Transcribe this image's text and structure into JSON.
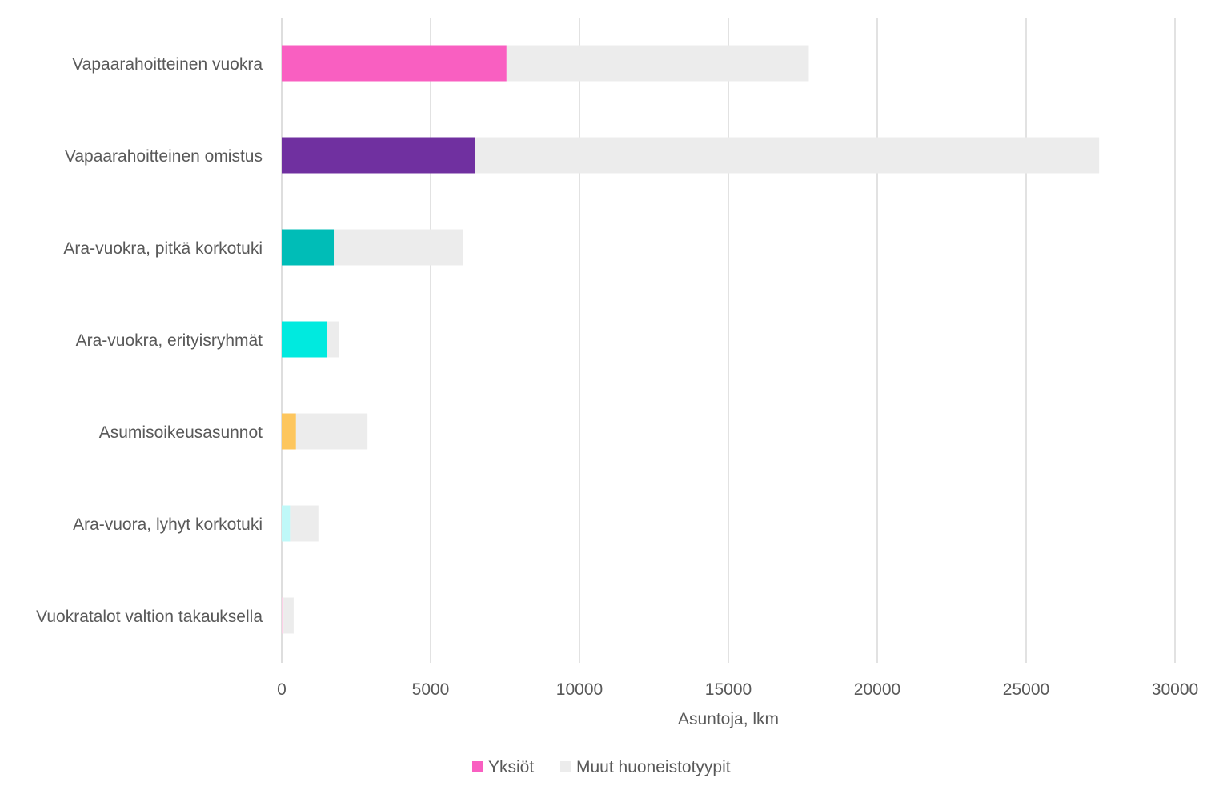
{
  "chart_data": {
    "type": "bar",
    "orientation": "horizontal",
    "stacked": true,
    "categories": [
      "Vapaarahoitteinen vuokra",
      "Vapaarahoitteinen omistus",
      "Ara-vuokra, pitkä korkotuki",
      "Ara-vuokra, erityisryhmät",
      "Asumisoikeusasunnot",
      "Ara-vuora, lyhyt korkotuki",
      "Vuokratalot valtion takauksella"
    ],
    "category_colors": [
      "#f95fc1",
      "#7030a0",
      "#00bdb7",
      "#00eadf",
      "#fdc65e",
      "#bff8f8",
      "#fbd0e6"
    ],
    "series": [
      {
        "name": "Yksiöt",
        "values": [
          7550,
          6500,
          1750,
          1520,
          480,
          280,
          60
        ]
      },
      {
        "name": "Muut huoneistotyypit",
        "values": [
          10150,
          20950,
          4350,
          400,
          2400,
          950,
          340
        ]
      }
    ],
    "series_colors": [
      "#f95fc1",
      "#ececec"
    ],
    "xlabel": "Asuntoja, lkm",
    "ylabel": "",
    "xlim": [
      0,
      30000
    ],
    "xticks": [
      0,
      5000,
      10000,
      15000,
      20000,
      25000,
      30000
    ],
    "xtick_labels": [
      "0",
      "5000",
      "10000",
      "15000",
      "20000",
      "25000",
      "30000"
    ],
    "grid": "vertical",
    "gridline_color": "#d9d9d9",
    "text_color": "#595959",
    "legend_position": "bottom"
  }
}
